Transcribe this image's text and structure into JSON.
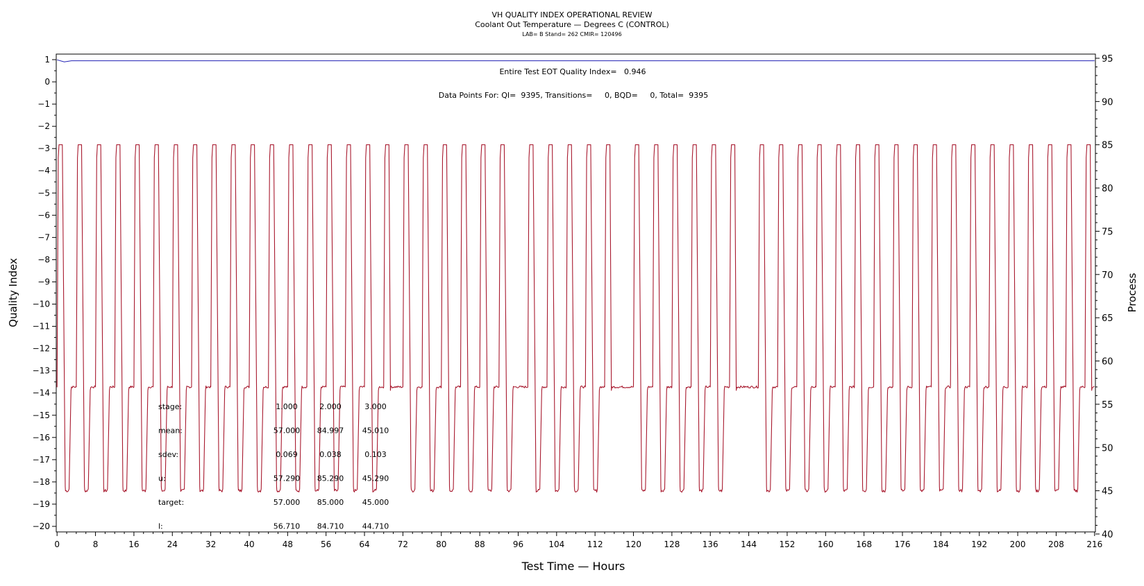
{
  "chart_data": {
    "type": "line",
    "title": "VH QUALITY INDEX OPERATIONAL REVIEW",
    "subtitle": "Coolant Out Temperature — Degrees C (CONTROL)",
    "subtitle2": "LAB= B Stand= 262 CMIR= 120496",
    "xlabel": "Test Time — Hours",
    "ylabel_left": "Quality Index",
    "ylabel_right": "Process",
    "xlim": [
      0,
      216
    ],
    "ylim_left": [
      -20,
      1
    ],
    "ylim_right": [
      40,
      95
    ],
    "x_ticks": [
      "0",
      "8",
      "16",
      "24",
      "32",
      "40",
      "48",
      "56",
      "64",
      "72",
      "80",
      "88",
      "96",
      "104",
      "112",
      "120",
      "128",
      "136",
      "144",
      "152",
      "160",
      "168",
      "176",
      "184",
      "192",
      "200",
      "208",
      "216"
    ],
    "y_left_ticks": [
      "1",
      "0",
      "-1",
      "-2",
      "-3",
      "-4",
      "-5",
      "-6",
      "-7",
      "-8",
      "-9",
      "-10",
      "-11",
      "-12",
      "-13",
      "-14",
      "-15",
      "-16",
      "-17",
      "-18",
      "-19",
      "-20"
    ],
    "y_right_ticks": [
      "95",
      "90",
      "85",
      "80",
      "75",
      "70",
      "65",
      "60",
      "55",
      "50",
      "45",
      "40"
    ],
    "annotations": {
      "quality_index": "Entire Test EOT Quality Index=   0.946",
      "data_points": "Data Points For: QI=  9395, Transitions=     0, BQD=     0, Total=  9395"
    },
    "stats_table": {
      "rows": [
        {
          "label": "stage:",
          "values": [
            "1.000",
            "2.000",
            "3.000"
          ]
        },
        {
          "label": "mean:",
          "values": [
            "57.000",
            "84.997",
            "45.010"
          ]
        },
        {
          "label": "sdev:",
          "values": [
            "0.069",
            "0.038",
            "0.103"
          ]
        },
        {
          "label": "u:",
          "values": [
            "57.290",
            "85.290",
            "45.290"
          ]
        },
        {
          "label": "target:",
          "values": [
            "57.000",
            "85.000",
            "45.000"
          ]
        },
        {
          "label": "l:",
          "values": [
            "56.710",
            "84.710",
            "44.710"
          ]
        }
      ]
    },
    "series": [
      {
        "axis": "left",
        "color": "#1f1fb4",
        "points": [
          [
            0,
            0.99
          ],
          [
            1.5,
            0.9
          ],
          [
            3,
            0.95
          ],
          [
            216,
            0.95
          ]
        ]
      },
      {
        "axis": "right",
        "color": "#a8192e",
        "pattern": {
          "cycle_hours": 4,
          "levels": {
            "stage1": 57.0,
            "stage2": 85.0,
            "stage3": 45.0
          },
          "cycle_start_hours": [
            0,
            4,
            8,
            12,
            16,
            20,
            24,
            28,
            32,
            36,
            40,
            44,
            48,
            52,
            56,
            60,
            64,
            68,
            72,
            76,
            80,
            84,
            88,
            92,
            98,
            102,
            106,
            110,
            114,
            120,
            124,
            128,
            132,
            136,
            140,
            146,
            150,
            154,
            158,
            162,
            166,
            170,
            174,
            178,
            182,
            186,
            190,
            194,
            198,
            202,
            206,
            210,
            214
          ],
          "stage3_skipped_at_cycle_start_hours": [
            68,
            94,
            114,
            140
          ]
        }
      }
    ]
  }
}
